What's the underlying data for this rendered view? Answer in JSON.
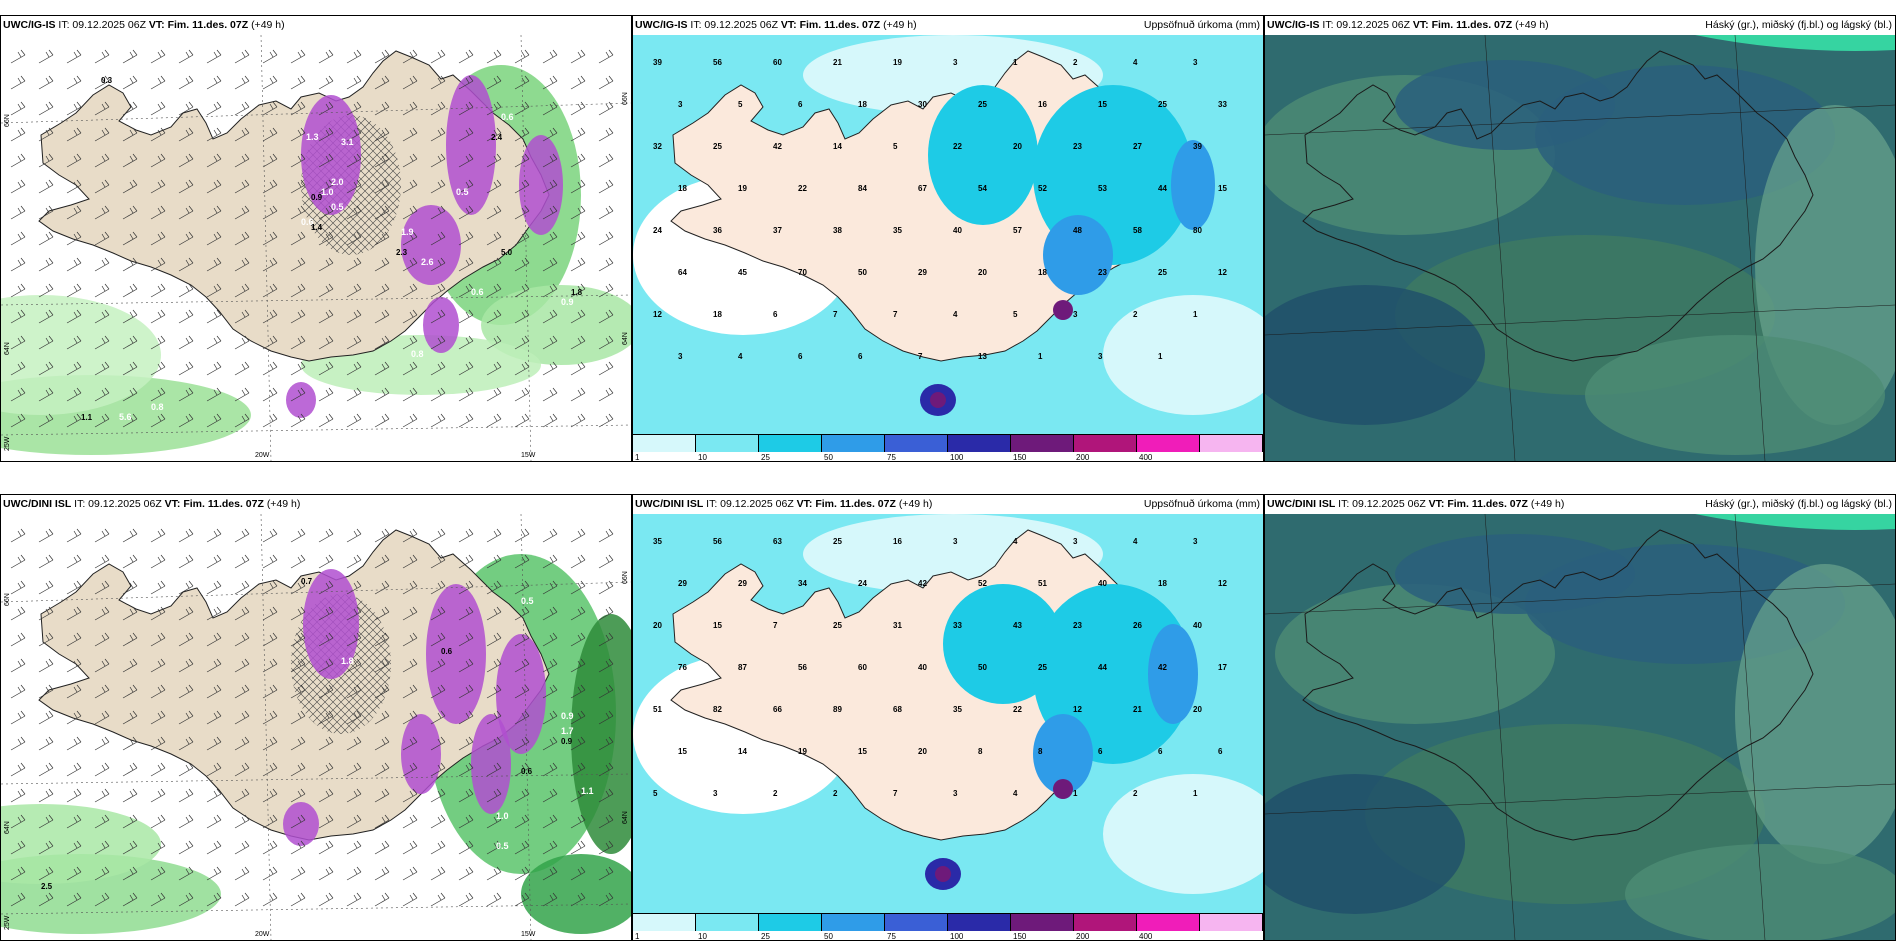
{
  "panels": [
    {
      "model": "UWC/IG-IS",
      "it": "IT: 09.12.2025 06Z",
      "vt_label": "VT:",
      "vt": "Fim. 11.des. 07Z",
      "lead": "(+49 h)",
      "title": ""
    },
    {
      "model": "UWC/IG-IS",
      "it": "IT: 09.12.2025 06Z",
      "vt_label": "VT:",
      "vt": "Fim. 11.des. 07Z",
      "lead": "(+49 h)",
      "title": "Uppsöfnuð úrkoma (mm)"
    },
    {
      "model": "UWC/IG-IS",
      "it": "IT: 09.12.2025 06Z",
      "vt_label": "VT:",
      "vt": "Fim. 11.des. 07Z",
      "lead": "(+49 h)",
      "title": "Háský (gr.), miðský (fj.bl.) og lágský (bl.)"
    },
    {
      "model": "UWC/DINI ISL",
      "it": "IT: 09.12.2025 06Z",
      "vt_label": "VT:",
      "vt": "Fim. 11.des. 07Z",
      "lead": "(+49 h)",
      "title": ""
    },
    {
      "model": "UWC/DINI ISL",
      "it": "IT: 09.12.2025 06Z",
      "vt_label": "VT:",
      "vt": "Fim. 11.des. 07Z",
      "lead": "(+49 h)",
      "title": "Uppsöfnuð úrkoma (mm)"
    },
    {
      "model": "UWC/DINI ISL",
      "it": "IT: 09.12.2025 06Z",
      "vt_label": "VT:",
      "vt": "Fim. 11.des. 07Z",
      "lead": "(+49 h)",
      "title": "Háský (gr.), miðský (fj.bl.) og lágský (bl.)"
    }
  ],
  "axes": {
    "lat66": "66N",
    "lat64": "64N",
    "lat64b": "64N",
    "lon20": "20W",
    "lon15": "15W",
    "lon25": "25W",
    "lat66r": "66N",
    "lat64r": "64N"
  },
  "colorbar": {
    "ticks": [
      "1",
      "10",
      "25",
      "50",
      "75",
      "100",
      "150",
      "200",
      "400"
    ],
    "colors": [
      "#d6f8fb",
      "#7ae8f2",
      "#1ecbe6",
      "#2f9ce8",
      "#3a5fd6",
      "#2a2aa8",
      "#6e1a7a",
      "#b0157a",
      "#f01db9",
      "#f6b5f0"
    ]
  },
  "precip_labels_top": [
    "39",
    "56",
    "60",
    "21",
    "19",
    "3",
    "1",
    "2",
    "4",
    "3",
    "3",
    "5",
    "6",
    "18",
    "30",
    "25",
    "16",
    "15",
    "25",
    "33",
    "32",
    "25",
    "42",
    "14",
    "5",
    "22",
    "20",
    "23",
    "27",
    "39",
    "18",
    "19",
    "22",
    "84",
    "67",
    "54",
    "52",
    "53",
    "44",
    "15",
    "24",
    "36",
    "37",
    "38",
    "35",
    "40",
    "57",
    "48",
    "58",
    "80",
    "64",
    "45",
    "70",
    "50",
    "29",
    "20",
    "18",
    "23",
    "25",
    "12",
    "12",
    "18",
    "6",
    "7",
    "7",
    "4",
    "5",
    "3",
    "2",
    "1",
    "3",
    "4",
    "6",
    "6",
    "7",
    "13",
    "1",
    "3",
    "1"
  ],
  "precip_labels_bottom": [
    "35",
    "56",
    "63",
    "25",
    "16",
    "3",
    "4",
    "3",
    "4",
    "3",
    "29",
    "29",
    "34",
    "24",
    "42",
    "52",
    "51",
    "40",
    "18",
    "12",
    "20",
    "15",
    "7",
    "25",
    "31",
    "33",
    "43",
    "23",
    "26",
    "40",
    "76",
    "87",
    "56",
    "60",
    "40",
    "50",
    "25",
    "44",
    "42",
    "17",
    "51",
    "82",
    "66",
    "89",
    "68",
    "35",
    "22",
    "12",
    "21",
    "20",
    "15",
    "14",
    "19",
    "15",
    "20",
    "8",
    "8",
    "6",
    "6",
    "6",
    "5",
    "3",
    "2",
    "2",
    "7",
    "3",
    "4",
    "1",
    "2",
    "1"
  ],
  "temp_labels_top": [
    "0.3",
    "1.3",
    "2.0",
    "2.3",
    "2.6",
    "1.9",
    "2.4",
    "0.5",
    "0.6",
    "1.4",
    "3.1",
    "1.0",
    "0.9",
    "0.5",
    "0.6",
    "1.8",
    "5.6",
    "0.8",
    "1.1",
    "0.6",
    "0.9",
    "5.0",
    "0.8"
  ],
  "temp_labels_bottom": [
    "0.7",
    "1.8",
    "0.3",
    "0.6",
    "0.5",
    "0.9",
    "0.6",
    "1.0",
    "1.7",
    "0.9",
    "1.1",
    "0.5",
    "2.5"
  ]
}
